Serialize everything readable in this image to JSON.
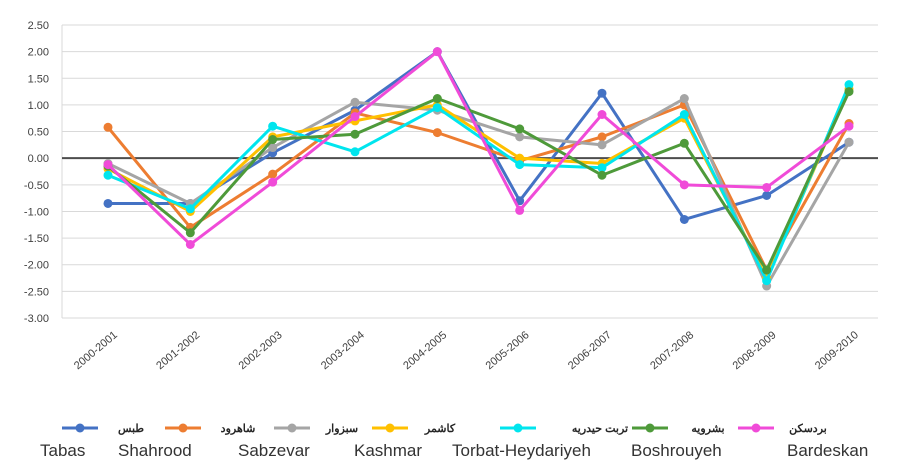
{
  "chart_data": {
    "type": "line",
    "title": "",
    "xlabel": "",
    "ylabel": "",
    "ylim": [
      -3.0,
      2.5
    ],
    "y_ticks": [
      "2.50",
      "2.00",
      "1.50",
      "1.00",
      "0.50",
      "0.00",
      "-0.50",
      "-1.00",
      "-1.50",
      "-2.00",
      "-2.50",
      "-3.00"
    ],
    "grid": true,
    "legend_position": "bottom",
    "categories": [
      "2000-2001",
      "2001-2002",
      "2002-2003",
      "2003-2004",
      "2004-2005",
      "2005-2006",
      "2006-2007",
      "2007-2008",
      "2008-2009",
      "2009-2010"
    ],
    "series": [
      {
        "name": "طبس",
        "latin": "Tabas",
        "color": "#4472C4",
        "values": [
          -0.85,
          -0.85,
          0.1,
          0.9,
          2.0,
          -0.8,
          1.22,
          -1.15,
          -0.7,
          0.3
        ]
      },
      {
        "name": "شاهرود",
        "latin": "Shahrood",
        "color": "#ED7D31",
        "values": [
          0.58,
          -1.3,
          -0.3,
          0.85,
          0.48,
          -0.05,
          0.4,
          1.0,
          -2.1,
          0.65
        ]
      },
      {
        "name": "سبزوار",
        "latin": "Sabzevar",
        "color": "#A5A5A5",
        "values": [
          -0.1,
          -0.85,
          0.2,
          1.05,
          0.9,
          0.4,
          0.25,
          1.12,
          -2.4,
          0.3
        ]
      },
      {
        "name": "کاشمر",
        "latin": "Kashmar",
        "color": "#FFC000",
        "values": [
          -0.2,
          -1.0,
          0.4,
          0.7,
          1.0,
          0.0,
          -0.1,
          0.75,
          -2.25,
          1.3
        ]
      },
      {
        "name": "تربت حیدریه",
        "latin": "Torbat-Heydariyeh",
        "color": "#00E5EE",
        "values": [
          -0.32,
          -0.95,
          0.6,
          0.12,
          0.95,
          -0.12,
          -0.18,
          0.82,
          -2.3,
          1.38
        ]
      },
      {
        "name": "بشرویه",
        "latin": "Boshrouyeh",
        "color": "#4E9A3A",
        "values": [
          -0.15,
          -1.4,
          0.35,
          0.45,
          1.12,
          0.55,
          -0.32,
          0.28,
          -2.1,
          1.25
        ]
      },
      {
        "name": "بردسکن",
        "latin": "Bardeskan",
        "color": "#F04BD8",
        "values": [
          -0.12,
          -1.62,
          -0.45,
          0.78,
          2.0,
          -0.98,
          0.82,
          -0.5,
          -0.55,
          0.6
        ]
      }
    ]
  }
}
